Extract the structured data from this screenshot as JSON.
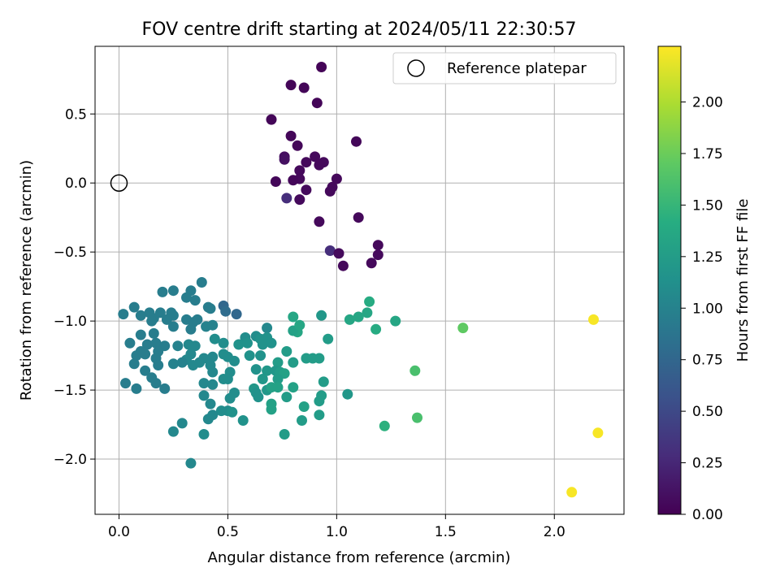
{
  "chart_data": {
    "type": "scatter",
    "title": "FOV centre drift starting at 2024/05/11 22:30:57",
    "xlabel": "Angular distance from reference (arcmin)",
    "ylabel": "Rotation from reference (arcmin)",
    "xlim": [
      -0.11,
      2.32
    ],
    "ylim": [
      -2.4,
      0.99
    ],
    "xticks": [
      0.0,
      0.5,
      1.0,
      1.5,
      2.0
    ],
    "xtick_labels": [
      "0.0",
      "0.5",
      "1.0",
      "1.5",
      "2.0"
    ],
    "yticks": [
      0.5,
      0.0,
      -0.5,
      -1.0,
      -1.5,
      -2.0
    ],
    "ytick_labels": [
      "0.5",
      "0.0",
      "−0.5",
      "−1.0",
      "−1.5",
      "−2.0"
    ],
    "grid": true,
    "legend": {
      "position": "top-right",
      "entries": [
        "Reference platepar"
      ]
    },
    "reference_point": {
      "x": 0.0,
      "y": 0.0,
      "label": "Reference platepar"
    },
    "colorbar": {
      "label": "Hours from first FF file",
      "colormap": "viridis",
      "range": [
        0.0,
        2.27
      ],
      "ticks": [
        0.0,
        0.25,
        0.5,
        0.75,
        1.0,
        1.25,
        1.5,
        1.75,
        2.0
      ],
      "tick_labels": [
        "0.00",
        "0.25",
        "0.50",
        "0.75",
        "1.00",
        "1.25",
        "1.50",
        "1.75",
        "2.00"
      ]
    },
    "points": [
      {
        "x": 0.93,
        "y": 0.84,
        "c": 0.02
      },
      {
        "x": 0.79,
        "y": 0.71,
        "c": 0.03
      },
      {
        "x": 0.85,
        "y": 0.69,
        "c": 0.03
      },
      {
        "x": 0.91,
        "y": 0.58,
        "c": 0.03
      },
      {
        "x": 0.7,
        "y": 0.46,
        "c": 0.03
      },
      {
        "x": 0.79,
        "y": 0.34,
        "c": 0.04
      },
      {
        "x": 1.09,
        "y": 0.3,
        "c": 0.04
      },
      {
        "x": 0.82,
        "y": 0.27,
        "c": 0.04
      },
      {
        "x": 0.76,
        "y": 0.19,
        "c": 0.08
      },
      {
        "x": 0.76,
        "y": 0.17,
        "c": 0.1
      },
      {
        "x": 0.9,
        "y": 0.19,
        "c": 0.05
      },
      {
        "x": 0.86,
        "y": 0.15,
        "c": 0.05
      },
      {
        "x": 0.94,
        "y": 0.15,
        "c": 0.06
      },
      {
        "x": 0.92,
        "y": 0.13,
        "c": 0.05
      },
      {
        "x": 0.83,
        "y": 0.09,
        "c": 0.05
      },
      {
        "x": 0.83,
        "y": 0.03,
        "c": 0.05
      },
      {
        "x": 0.8,
        "y": 0.02,
        "c": 0.04
      },
      {
        "x": 0.72,
        "y": 0.01,
        "c": 0.04
      },
      {
        "x": 1.0,
        "y": 0.03,
        "c": 0.05
      },
      {
        "x": 0.98,
        "y": -0.03,
        "c": 0.05
      },
      {
        "x": 0.86,
        "y": -0.05,
        "c": 0.06
      },
      {
        "x": 0.97,
        "y": -0.06,
        "c": 0.05
      },
      {
        "x": 0.77,
        "y": -0.11,
        "c": 0.3
      },
      {
        "x": 0.83,
        "y": -0.12,
        "c": 0.06
      },
      {
        "x": 1.1,
        "y": -0.25,
        "c": 0.05
      },
      {
        "x": 0.92,
        "y": -0.28,
        "c": 0.05
      },
      {
        "x": 1.19,
        "y": -0.45,
        "c": 0.05
      },
      {
        "x": 0.97,
        "y": -0.49,
        "c": 0.3
      },
      {
        "x": 1.01,
        "y": -0.51,
        "c": 0.06
      },
      {
        "x": 1.19,
        "y": -0.52,
        "c": 0.06
      },
      {
        "x": 1.16,
        "y": -0.58,
        "c": 0.05
      },
      {
        "x": 1.03,
        "y": -0.6,
        "c": 0.05
      },
      {
        "x": 0.38,
        "y": -0.72,
        "c": 0.95
      },
      {
        "x": 0.33,
        "y": -0.78,
        "c": 0.95
      },
      {
        "x": 0.2,
        "y": -0.79,
        "c": 0.95
      },
      {
        "x": 0.25,
        "y": -0.78,
        "c": 0.95
      },
      {
        "x": 0.31,
        "y": -0.83,
        "c": 0.95
      },
      {
        "x": 0.35,
        "y": -0.85,
        "c": 0.95
      },
      {
        "x": 0.48,
        "y": -0.89,
        "c": 0.75
      },
      {
        "x": 0.07,
        "y": -0.9,
        "c": 0.95
      },
      {
        "x": 0.41,
        "y": -0.9,
        "c": 0.95
      },
      {
        "x": 0.42,
        "y": -0.91,
        "c": 0.95
      },
      {
        "x": 0.49,
        "y": -0.93,
        "c": 0.8
      },
      {
        "x": 0.54,
        "y": -0.95,
        "c": 0.75
      },
      {
        "x": 0.02,
        "y": -0.95,
        "c": 0.95
      },
      {
        "x": 0.14,
        "y": -0.94,
        "c": 0.95
      },
      {
        "x": 0.19,
        "y": -0.94,
        "c": 0.95
      },
      {
        "x": 0.24,
        "y": -0.94,
        "c": 0.95
      },
      {
        "x": 0.25,
        "y": -0.96,
        "c": 0.95
      },
      {
        "x": 0.1,
        "y": -0.96,
        "c": 0.95
      },
      {
        "x": 0.16,
        "y": -0.98,
        "c": 0.95
      },
      {
        "x": 0.22,
        "y": -0.99,
        "c": 0.95
      },
      {
        "x": 0.31,
        "y": -0.99,
        "c": 0.95
      },
      {
        "x": 0.36,
        "y": -0.99,
        "c": 0.95
      },
      {
        "x": 0.15,
        "y": -1.0,
        "c": 0.95
      },
      {
        "x": 0.34,
        "y": -1.01,
        "c": 0.95
      },
      {
        "x": 0.25,
        "y": -1.04,
        "c": 0.95
      },
      {
        "x": 0.33,
        "y": -1.06,
        "c": 0.95
      },
      {
        "x": 0.4,
        "y": -1.04,
        "c": 1.0
      },
      {
        "x": 0.43,
        "y": -1.03,
        "c": 1.0
      },
      {
        "x": 0.68,
        "y": -1.05,
        "c": 1.05
      },
      {
        "x": 0.1,
        "y": -1.1,
        "c": 0.95
      },
      {
        "x": 0.16,
        "y": -1.09,
        "c": 0.95
      },
      {
        "x": 0.44,
        "y": -1.13,
        "c": 1.1
      },
      {
        "x": 0.58,
        "y": -1.12,
        "c": 1.1
      },
      {
        "x": 0.63,
        "y": -1.11,
        "c": 1.1
      },
      {
        "x": 0.65,
        "y": -1.13,
        "c": 1.15
      },
      {
        "x": 0.68,
        "y": -1.12,
        "c": 1.15
      },
      {
        "x": 0.05,
        "y": -1.16,
        "c": 0.95
      },
      {
        "x": 0.13,
        "y": -1.17,
        "c": 0.95
      },
      {
        "x": 0.17,
        "y": -1.16,
        "c": 0.95
      },
      {
        "x": 0.21,
        "y": -1.18,
        "c": 0.95
      },
      {
        "x": 0.32,
        "y": -1.17,
        "c": 1.05
      },
      {
        "x": 0.35,
        "y": -1.18,
        "c": 1.05
      },
      {
        "x": 0.48,
        "y": -1.16,
        "c": 1.1
      },
      {
        "x": 0.55,
        "y": -1.17,
        "c": 1.15
      },
      {
        "x": 0.59,
        "y": -1.16,
        "c": 1.15
      },
      {
        "x": 0.66,
        "y": -1.17,
        "c": 1.15
      },
      {
        "x": 0.7,
        "y": -1.16,
        "c": 1.15
      },
      {
        "x": 0.27,
        "y": -1.18,
        "c": 1.0
      },
      {
        "x": 0.1,
        "y": -1.22,
        "c": 0.95
      },
      {
        "x": 0.12,
        "y": -1.24,
        "c": 0.95
      },
      {
        "x": 0.18,
        "y": -1.22,
        "c": 0.95
      },
      {
        "x": 0.08,
        "y": -1.25,
        "c": 0.95
      },
      {
        "x": 0.17,
        "y": -1.27,
        "c": 0.95
      },
      {
        "x": 0.33,
        "y": -1.24,
        "c": 1.05
      },
      {
        "x": 0.31,
        "y": -1.28,
        "c": 1.05
      },
      {
        "x": 0.43,
        "y": -1.26,
        "c": 1.05
      },
      {
        "x": 0.48,
        "y": -1.24,
        "c": 1.1
      },
      {
        "x": 0.5,
        "y": -1.26,
        "c": 1.1
      },
      {
        "x": 0.53,
        "y": -1.29,
        "c": 1.1
      },
      {
        "x": 0.39,
        "y": -1.27,
        "c": 1.05
      },
      {
        "x": 0.6,
        "y": -1.25,
        "c": 1.15
      },
      {
        "x": 0.65,
        "y": -1.25,
        "c": 1.15
      },
      {
        "x": 0.77,
        "y": -1.22,
        "c": 1.25
      },
      {
        "x": 0.86,
        "y": -1.27,
        "c": 1.25
      },
      {
        "x": 0.89,
        "y": -1.27,
        "c": 1.25
      },
      {
        "x": 0.92,
        "y": -1.27,
        "c": 1.25
      },
      {
        "x": 0.8,
        "y": -1.3,
        "c": 1.25
      },
      {
        "x": 0.73,
        "y": -1.3,
        "c": 1.25
      },
      {
        "x": 0.07,
        "y": -1.31,
        "c": 0.95
      },
      {
        "x": 0.18,
        "y": -1.32,
        "c": 0.95
      },
      {
        "x": 0.25,
        "y": -1.31,
        "c": 1.0
      },
      {
        "x": 0.29,
        "y": -1.3,
        "c": 1.0
      },
      {
        "x": 0.34,
        "y": -1.32,
        "c": 1.05
      },
      {
        "x": 0.37,
        "y": -1.3,
        "c": 1.05
      },
      {
        "x": 0.42,
        "y": -1.32,
        "c": 1.05
      },
      {
        "x": 0.12,
        "y": -1.36,
        "c": 0.95
      },
      {
        "x": 0.43,
        "y": -1.37,
        "c": 1.05
      },
      {
        "x": 0.51,
        "y": -1.37,
        "c": 1.1
      },
      {
        "x": 0.63,
        "y": -1.35,
        "c": 1.15
      },
      {
        "x": 0.68,
        "y": -1.36,
        "c": 1.2
      },
      {
        "x": 0.72,
        "y": -1.36,
        "c": 1.2
      },
      {
        "x": 0.74,
        "y": -1.37,
        "c": 1.25
      },
      {
        "x": 0.76,
        "y": -1.38,
        "c": 1.3
      },
      {
        "x": 0.15,
        "y": -1.41,
        "c": 0.95
      },
      {
        "x": 0.48,
        "y": -1.42,
        "c": 1.1
      },
      {
        "x": 0.5,
        "y": -1.42,
        "c": 1.1
      },
      {
        "x": 0.66,
        "y": -1.42,
        "c": 1.2
      },
      {
        "x": 0.73,
        "y": -1.42,
        "c": 1.25
      },
      {
        "x": 0.94,
        "y": -1.44,
        "c": 1.25
      },
      {
        "x": 0.03,
        "y": -1.45,
        "c": 0.95
      },
      {
        "x": 0.17,
        "y": -1.45,
        "c": 0.95
      },
      {
        "x": 0.39,
        "y": -1.45,
        "c": 1.05
      },
      {
        "x": 0.43,
        "y": -1.46,
        "c": 1.05
      },
      {
        "x": 0.21,
        "y": -1.49,
        "c": 0.95
      },
      {
        "x": 0.08,
        "y": -1.49,
        "c": 0.95
      },
      {
        "x": 0.62,
        "y": -1.49,
        "c": 1.2
      },
      {
        "x": 0.68,
        "y": -1.5,
        "c": 1.2
      },
      {
        "x": 0.7,
        "y": -1.48,
        "c": 1.3
      },
      {
        "x": 0.73,
        "y": -1.48,
        "c": 1.3
      },
      {
        "x": 0.8,
        "y": -1.48,
        "c": 1.3
      },
      {
        "x": 1.05,
        "y": -1.53,
        "c": 1.2
      },
      {
        "x": 0.39,
        "y": -1.54,
        "c": 1.05
      },
      {
        "x": 0.53,
        "y": -1.52,
        "c": 1.1
      },
      {
        "x": 0.51,
        "y": -1.56,
        "c": 1.1
      },
      {
        "x": 0.63,
        "y": -1.52,
        "c": 1.15
      },
      {
        "x": 0.64,
        "y": -1.55,
        "c": 1.15
      },
      {
        "x": 0.77,
        "y": -1.55,
        "c": 1.25
      },
      {
        "x": 0.93,
        "y": -1.54,
        "c": 1.25
      },
      {
        "x": 0.92,
        "y": -1.58,
        "c": 1.25
      },
      {
        "x": 0.42,
        "y": -1.6,
        "c": 1.05
      },
      {
        "x": 0.7,
        "y": -1.6,
        "c": 1.3
      },
      {
        "x": 0.7,
        "y": -1.64,
        "c": 1.3
      },
      {
        "x": 0.85,
        "y": -1.62,
        "c": 1.3
      },
      {
        "x": 0.5,
        "y": -1.65,
        "c": 1.1
      },
      {
        "x": 0.47,
        "y": -1.65,
        "c": 1.1
      },
      {
        "x": 0.43,
        "y": -1.68,
        "c": 1.05
      },
      {
        "x": 0.52,
        "y": -1.66,
        "c": 1.15
      },
      {
        "x": 0.41,
        "y": -1.71,
        "c": 1.05
      },
      {
        "x": 0.57,
        "y": -1.72,
        "c": 1.15
      },
      {
        "x": 0.84,
        "y": -1.72,
        "c": 1.25
      },
      {
        "x": 0.92,
        "y": -1.68,
        "c": 1.25
      },
      {
        "x": 0.29,
        "y": -1.74,
        "c": 1.05
      },
      {
        "x": 0.25,
        "y": -1.8,
        "c": 1.05
      },
      {
        "x": 0.39,
        "y": -1.82,
        "c": 1.1
      },
      {
        "x": 0.76,
        "y": -1.82,
        "c": 1.25
      },
      {
        "x": 0.33,
        "y": -2.03,
        "c": 1.05
      },
      {
        "x": 0.96,
        "y": -1.13,
        "c": 1.25
      },
      {
        "x": 0.82,
        "y": -1.08,
        "c": 1.35
      },
      {
        "x": 0.8,
        "y": -1.07,
        "c": 1.3
      },
      {
        "x": 0.83,
        "y": -1.03,
        "c": 1.35
      },
      {
        "x": 0.8,
        "y": -0.97,
        "c": 1.35
      },
      {
        "x": 0.93,
        "y": -0.96,
        "c": 1.2
      },
      {
        "x": 1.06,
        "y": -0.99,
        "c": 1.35
      },
      {
        "x": 1.1,
        "y": -0.97,
        "c": 1.35
      },
      {
        "x": 1.14,
        "y": -0.94,
        "c": 1.35
      },
      {
        "x": 1.15,
        "y": -0.86,
        "c": 1.4
      },
      {
        "x": 1.18,
        "y": -1.06,
        "c": 1.4
      },
      {
        "x": 1.27,
        "y": -1.0,
        "c": 1.35
      },
      {
        "x": 1.22,
        "y": -1.76,
        "c": 1.45
      },
      {
        "x": 1.36,
        "y": -1.36,
        "c": 1.6
      },
      {
        "x": 1.37,
        "y": -1.7,
        "c": 1.6
      },
      {
        "x": 1.58,
        "y": -1.05,
        "c": 1.7
      },
      {
        "x": 2.18,
        "y": -0.99,
        "c": 2.25
      },
      {
        "x": 2.2,
        "y": -1.81,
        "c": 2.25
      },
      {
        "x": 2.08,
        "y": -2.24,
        "c": 2.25
      }
    ]
  }
}
